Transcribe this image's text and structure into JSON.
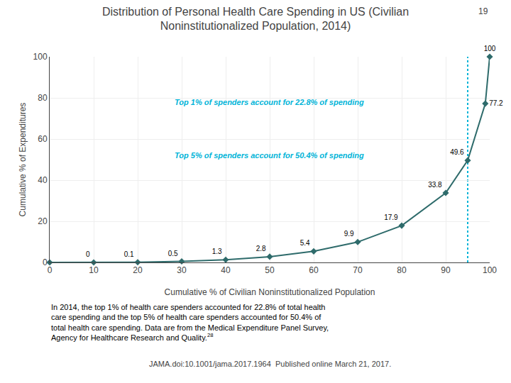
{
  "chart_data": {
    "type": "line",
    "title": "Distribution of Personal Health Care Spending in US (Civilian\nNoninstitutionalized Population, 2014)",
    "x": [
      0,
      10,
      20,
      30,
      40,
      50,
      60,
      70,
      80,
      90,
      95,
      99,
      100
    ],
    "values": [
      0,
      0,
      0.1,
      0.5,
      1.3,
      2.8,
      5.4,
      9.9,
      17.9,
      33.8,
      49.6,
      77.2,
      100
    ],
    "value_labels": [
      null,
      "0",
      "0.1",
      "0.5",
      "1.3",
      "2.8",
      "5.4",
      "9.9",
      "17.9",
      "33.8",
      "49.6",
      "77.2",
      "100"
    ],
    "data_labels": true,
    "color": "#2e6b6b",
    "marker": "diamond",
    "xlabel": "Cumulative % of Civilian Noninstitutionalized Population",
    "ylabel": "Cumulative % of Expenditures",
    "xlim": [
      0,
      100
    ],
    "ylim": [
      0,
      100
    ],
    "xticks": [
      0,
      10,
      20,
      30,
      40,
      50,
      60,
      70,
      80,
      90,
      100
    ],
    "yticks": [
      0,
      20,
      40,
      60,
      80,
      100
    ],
    "grid": true,
    "annotations": [
      {
        "text": "Top 1% of spenders account for 22.8% of spending",
        "x": 28,
        "y": 78,
        "color": "#00b4d8"
      },
      {
        "text": "Top 5% of spenders account for 50.4% of spending",
        "x": 28,
        "y": 52,
        "color": "#00b4d8"
      }
    ],
    "reference_lines": [
      {
        "x": 95,
        "color": "#00b4d8",
        "line_style": "dotted"
      }
    ],
    "slide_number": "19",
    "footnote": "In 2014, the top 1% of health care spenders accounted for 22.8% of total health\ncare spending and the top 5% of health care spenders accounted for 50.4% of\ntotal health care spending. Data are from the Medical Expenditure Panel Survey,\nAgency for Healthcare Research and Quality.",
    "footnote_superscript": "28",
    "source": "JAMA.doi:10.1001/jama.2017.1964  Published online March 21, 2017."
  }
}
